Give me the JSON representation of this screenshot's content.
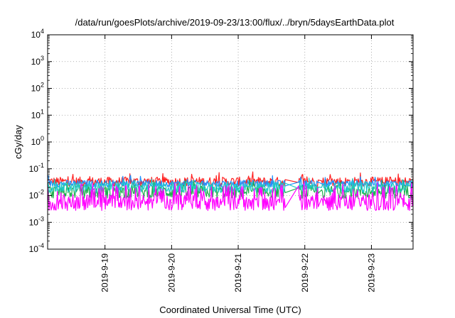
{
  "chart_data": {
    "type": "line",
    "title": "/data/run/goesPlots/archive/2019-09-23/13:00/flux/../bryn/5daysEarthData.plot",
    "xlabel": "Coordinated Universal Time (UTC)",
    "ylabel": "cGy/day",
    "yscale": "log",
    "ylim": [
      0.0001,
      10000
    ],
    "xlim": [
      "2019-09-18T03:20",
      "2019-09-23T15:00"
    ],
    "grid": true,
    "y_ticks": [
      {
        "base": "10",
        "exp": "-4",
        "value": 0.0001
      },
      {
        "base": "10",
        "exp": "-3",
        "value": 0.001
      },
      {
        "base": "10",
        "exp": "-2",
        "value": 0.01
      },
      {
        "base": "10",
        "exp": "-1",
        "value": 0.1
      },
      {
        "base": "10",
        "exp": "0",
        "value": 1
      },
      {
        "base": "10",
        "exp": "1",
        "value": 10
      },
      {
        "base": "10",
        "exp": "2",
        "value": 100
      },
      {
        "base": "10",
        "exp": "3",
        "value": 1000
      },
      {
        "base": "10",
        "exp": "4",
        "value": 10000
      }
    ],
    "x_ticks": [
      {
        "label": "2019-9-19",
        "date": "2019-09-19T00:00"
      },
      {
        "label": "2019-9-20",
        "date": "2019-09-20T00:00"
      },
      {
        "label": "2019-9-21",
        "date": "2019-09-21T00:00"
      },
      {
        "label": "2019-9-22",
        "date": "2019-09-22T00:00"
      },
      {
        "label": "2019-9-23",
        "date": "2019-09-23T00:00"
      }
    ],
    "series": [
      {
        "color": "#ff2020",
        "base": 0.033,
        "spread": 0.35,
        "spikes": 0.06
      },
      {
        "color": "#2090ff",
        "base": 0.028,
        "spread": 0.25,
        "spikes": 0.045
      },
      {
        "color": "#20b050",
        "base": 0.014,
        "spread": 0.5,
        "spikes": 0.03
      },
      {
        "color": "#20c8c8",
        "base": 0.02,
        "spread": 0.4,
        "spikes": 0.035
      },
      {
        "color": "#ff00ff",
        "base": 0.0055,
        "spread": 0.6,
        "spikes": 0.025
      }
    ]
  }
}
